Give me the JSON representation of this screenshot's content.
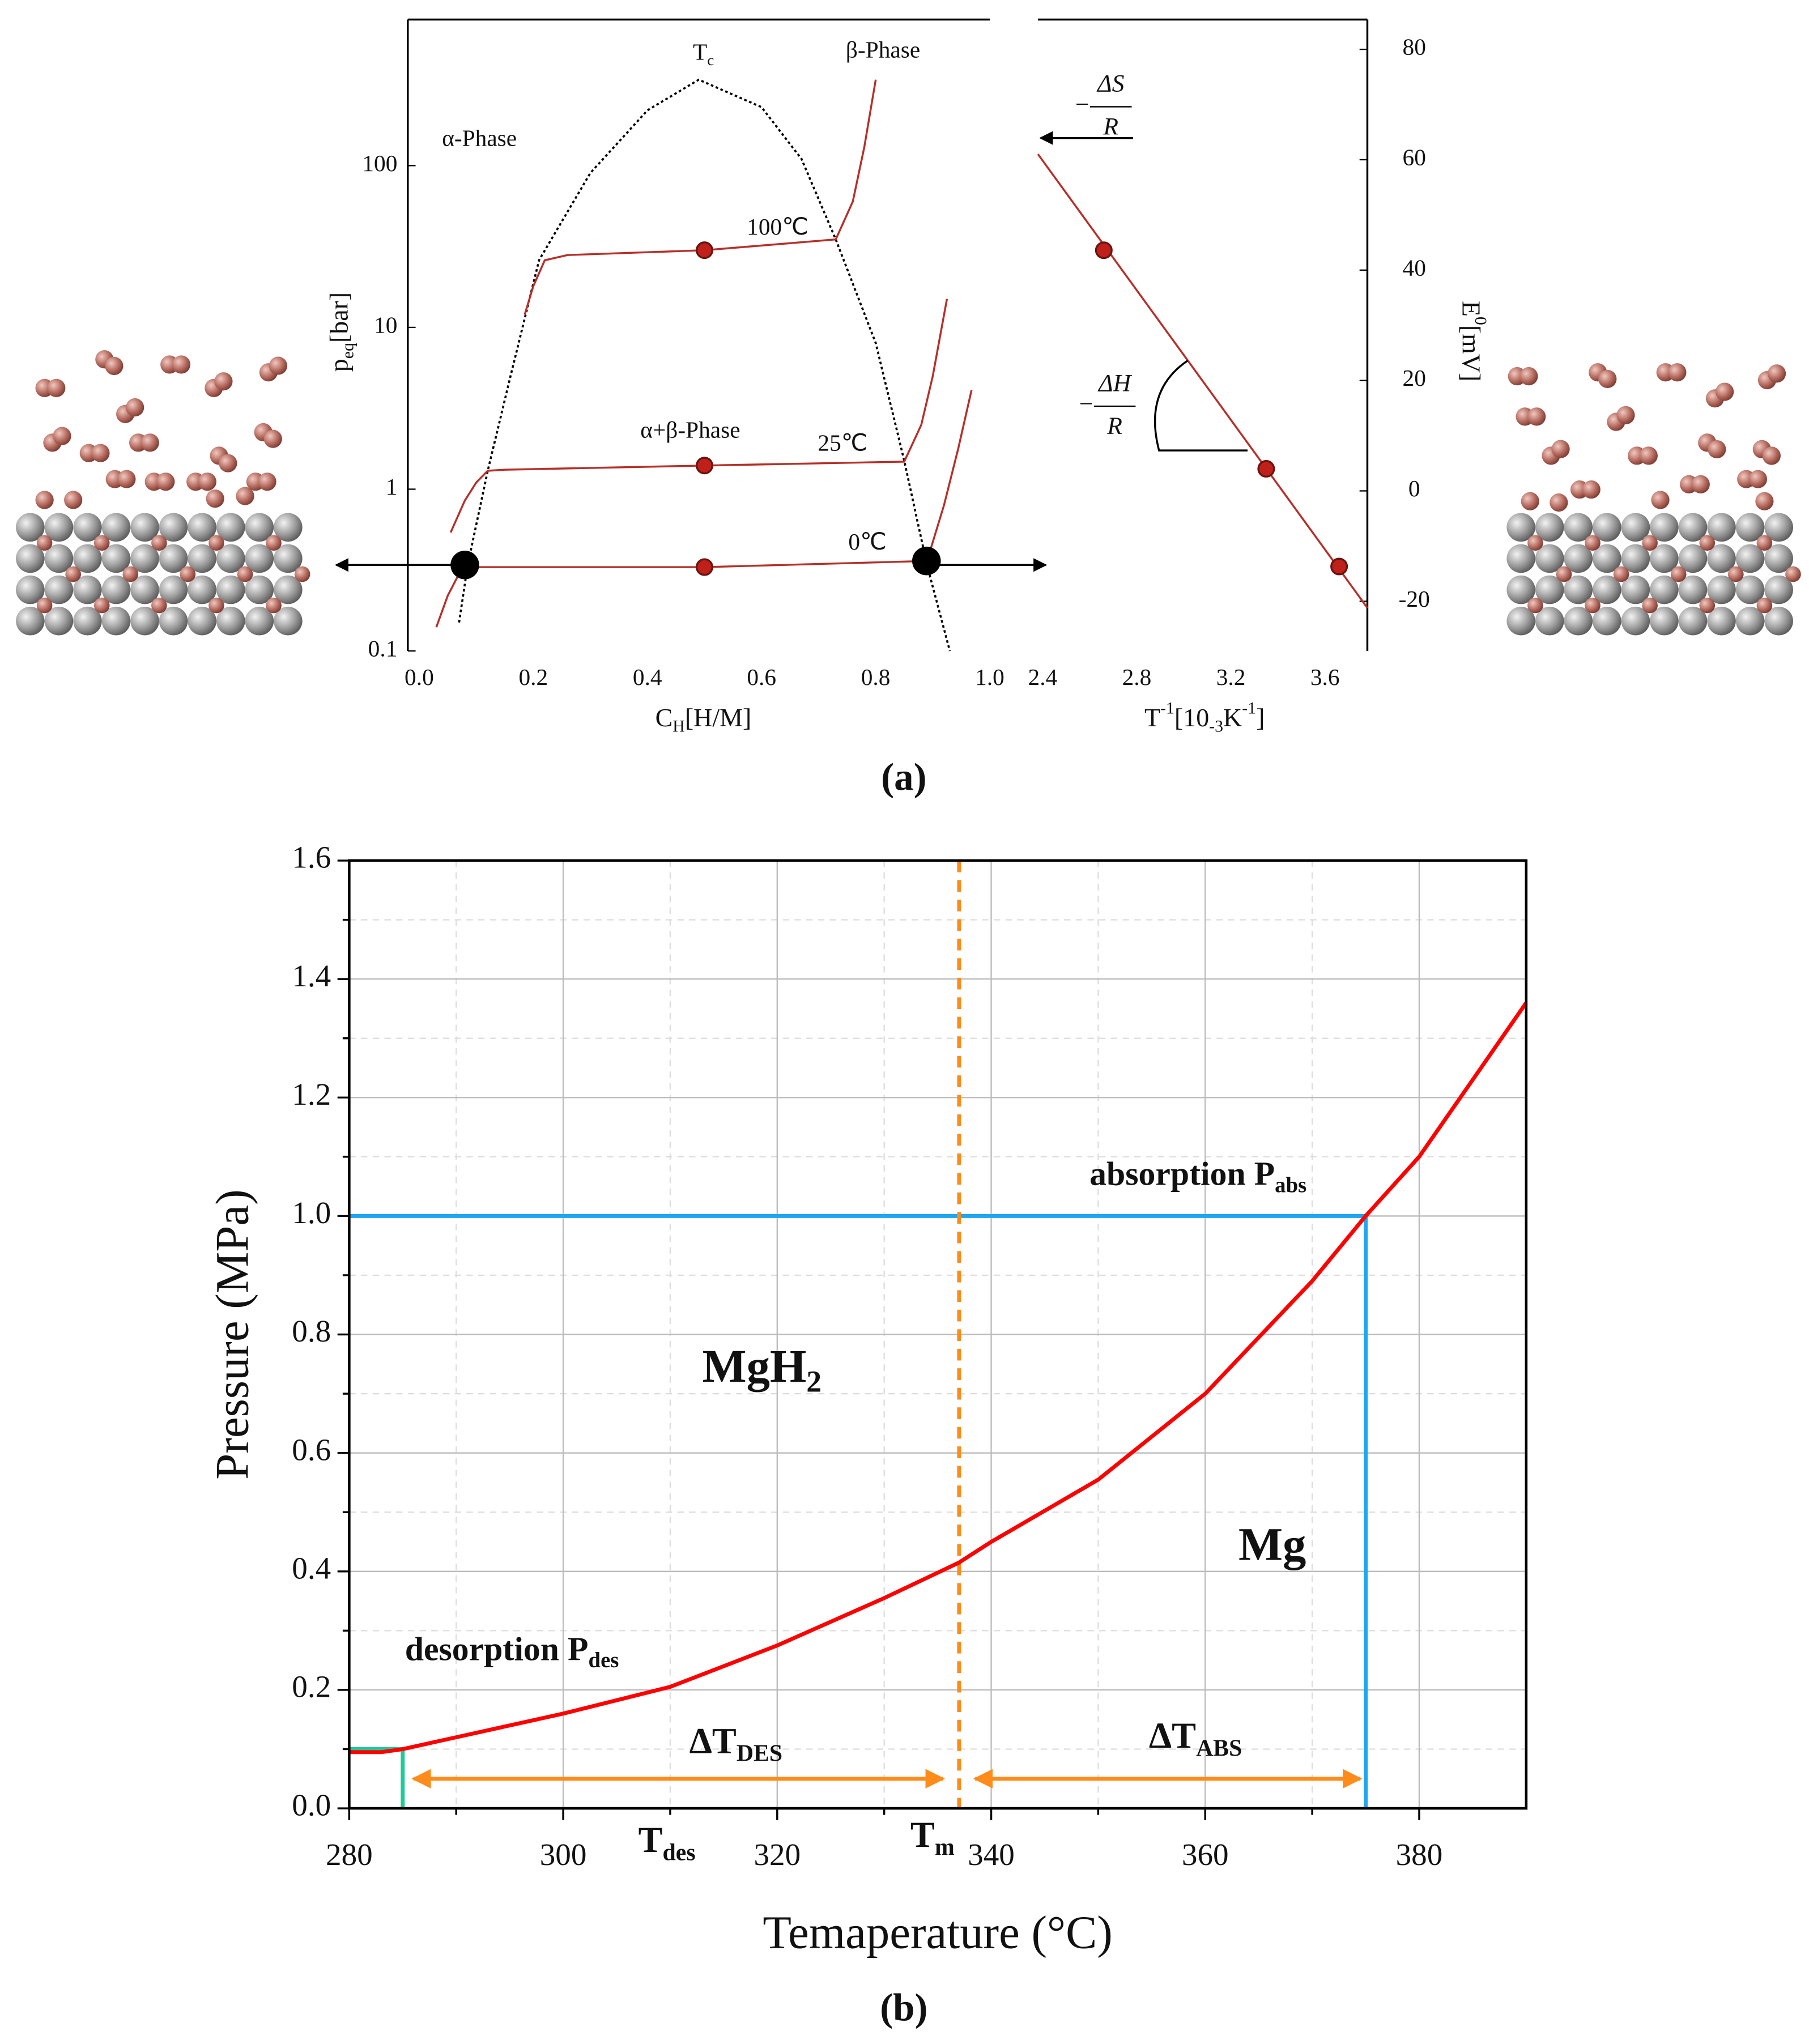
{
  "captions": [
    "(a)",
    "(b)"
  ],
  "chart_data": [
    {
      "type": "line",
      "log_y": true,
      "x_label": [
        "C",
        "H",
        "[H/M]"
      ],
      "y_label": [
        "p",
        "eq",
        "[bar]"
      ],
      "xlim": [
        -0.02,
        1.0
      ],
      "ylim": [
        0.1,
        800
      ],
      "xticks": [
        {
          "value": 0,
          "label": "0.0"
        },
        0.2,
        0.4,
        0.6,
        0.8,
        {
          "value": 1,
          "label": "1.0"
        }
      ],
      "yticks": [
        0.1,
        1,
        10,
        100
      ],
      "series": [
        {
          "name": "100℃",
          "color": "#b5302a",
          "x": [
            0.185,
            0.2,
            0.22,
            0.26,
            0.5,
            0.73,
            0.76,
            0.78,
            0.8
          ],
          "values": [
            12,
            18,
            26,
            28,
            30,
            35,
            60,
            130,
            340
          ],
          "marker_x": [
            0.5
          ],
          "marker_values": [
            30
          ]
        },
        {
          "name": "25℃",
          "color": "#b5302a",
          "x": [
            0.055,
            0.08,
            0.1,
            0.12,
            0.15,
            0.5,
            0.85,
            0.88,
            0.9,
            0.925
          ],
          "values": [
            0.54,
            0.85,
            1.1,
            1.3,
            1.32,
            1.4,
            1.48,
            2.5,
            5,
            15
          ],
          "marker_x": [
            0.5
          ],
          "marker_values": [
            1.4
          ]
        },
        {
          "name": "0℃",
          "color": "#b5302a",
          "x": [
            0.03,
            0.05,
            0.07,
            0.085,
            0.1,
            0.5,
            0.89,
            0.92,
            0.945,
            0.968
          ],
          "values": [
            0.14,
            0.22,
            0.3,
            0.34,
            0.33,
            0.33,
            0.36,
            0.8,
            1.8,
            4.1
          ],
          "marker_x": [
            0.5
          ],
          "marker_values": [
            0.33
          ]
        }
      ],
      "boundary": {
        "label": [
          "T",
          "c"
        ],
        "color": "#000000",
        "x": [
          0.07,
          0.085,
          0.12,
          0.16,
          0.21,
          0.3,
          0.4,
          0.49,
          0.6,
          0.67,
          0.73,
          0.8,
          0.85,
          0.89,
          0.93
        ],
        "values": [
          0.15,
          0.34,
          1.3,
          5,
          26,
          90,
          220,
          340,
          230,
          110,
          35,
          8,
          1.5,
          0.34,
          0.1
        ]
      },
      "phase_points": {
        "color": "#000000",
        "x": [
          0.08,
          0.889
        ],
        "values": [
          0.34,
          0.36
        ]
      },
      "annotations": [
        "α-Phase",
        "β-Phase",
        "α+β-Phase"
      ]
    },
    {
      "type": "line",
      "x_label": [
        "T",
        "-1",
        "[10",
        "-3",
        "K",
        "-1",
        "]"
      ],
      "y_label": [
        "E",
        "0",
        "[mV]"
      ],
      "xlim": [
        2.38,
        3.78
      ],
      "ylim": [
        -29,
        85.4
      ],
      "xticks": [
        2.4,
        2.8,
        3.2,
        3.6
      ],
      "yticks": [
        -20,
        0,
        20,
        40,
        60,
        80
      ],
      "series": [
        {
          "color": "#b5302a",
          "x": [
            2.38,
            3.78
          ],
          "values": [
            61,
            -21.2
          ],
          "marker_x": [
            2.66,
            3.35,
            3.66
          ],
          "marker_values": [
            43.6,
            4,
            -13.7
          ]
        }
      ],
      "entropy_label": [
        "−",
        "ΔS",
        "R"
      ],
      "enthalpy_label": [
        "−",
        "ΔH",
        "R"
      ]
    },
    {
      "type": "line",
      "x_label": "Temaperature (°C)",
      "y_label": "Pressure (MPa)",
      "xlim": [
        280,
        390
      ],
      "ylim": [
        0,
        1.6
      ],
      "xticks": [
        280,
        300,
        320,
        340,
        360,
        380
      ],
      "minor_xticks": [
        290,
        310,
        330,
        350,
        370
      ],
      "yticks": [
        {
          "value": 0,
          "label": "0.0"
        },
        0.2,
        0.4,
        0.6,
        0.8,
        {
          "value": 1,
          "label": "1.0"
        },
        1.2,
        1.4,
        1.6
      ],
      "minor_yticks": [
        0.1,
        0.3,
        0.5,
        0.7,
        0.9,
        1.1,
        1.3,
        1.5
      ],
      "grid": true,
      "series": [
        {
          "color": "#ff0000",
          "x": [
            280,
            283,
            285,
            290,
            300,
            310,
            320,
            330,
            337,
            340,
            350,
            360,
            370,
            375,
            380,
            385,
            390
          ],
          "values": [
            0.095,
            0.095,
            0.1,
            0.12,
            0.16,
            0.205,
            0.275,
            0.355,
            0.415,
            0.45,
            0.555,
            0.7,
            0.89,
            1.0,
            1.1,
            1.23,
            1.36
          ]
        }
      ],
      "absorption": {
        "label": [
          "absorption P",
          "abs"
        ],
        "pressure": 1.0,
        "temperature": 375,
        "color": "#1ea7f0"
      },
      "desorption": {
        "label": [
          "desorption P",
          "des"
        ],
        "t_label": [
          "T",
          "des"
        ],
        "pressure": 0.1,
        "temperature": 285,
        "color": "#20c997"
      },
      "melting": {
        "label": [
          "T",
          "m"
        ],
        "temperature": 337,
        "color": "#ff8c1a"
      },
      "delta_des": {
        "label": [
          "ΔT",
          "DES"
        ],
        "from": 286,
        "to": 335.5,
        "pressure": 0.05,
        "color": "#ff8c1a"
      },
      "delta_abs": {
        "label": [
          "ΔT",
          "ABS"
        ],
        "from": 338.5,
        "to": 374.5,
        "pressure": 0.05,
        "color": "#ff8c1a"
      },
      "regions": [
        [
          "MgH",
          "2"
        ],
        "Mg"
      ]
    }
  ]
}
